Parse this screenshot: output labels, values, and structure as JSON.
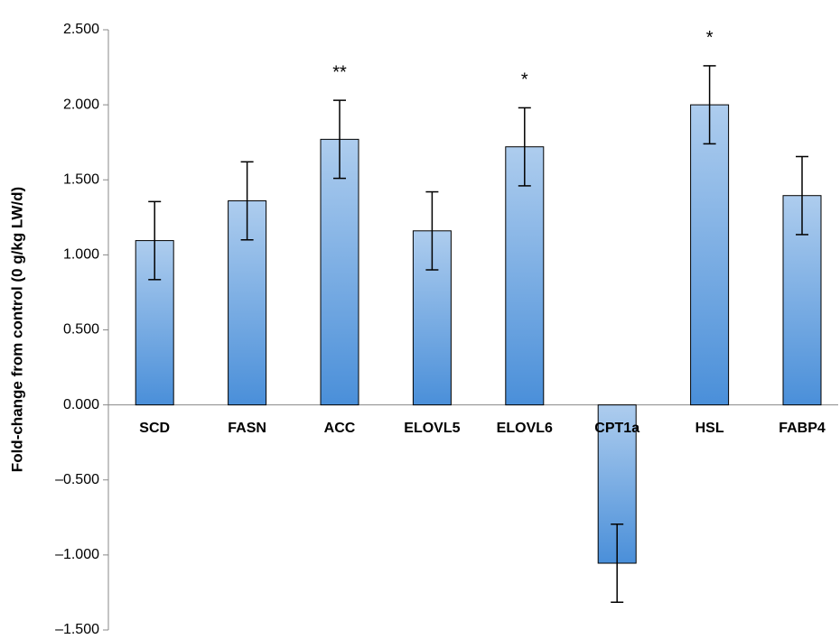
{
  "chart_data": {
    "type": "bar",
    "y_label": "Fold-change from control (0 g/kg LW/d)",
    "categories": [
      "SCD",
      "FASN",
      "ACC",
      "ELOVL5",
      "ELOVL6",
      "CPT1a",
      "HSL",
      "FABP4"
    ],
    "values": [
      1.095,
      1.36,
      1.77,
      1.16,
      1.72,
      -1.055,
      2.0,
      1.395
    ],
    "errors": [
      0.26,
      0.26,
      0.26,
      0.26,
      0.26,
      0.26,
      0.26,
      0.26
    ],
    "significance": [
      null,
      null,
      "**",
      null,
      "*",
      null,
      "*",
      null
    ],
    "color": "#4a8fd9",
    "ylim": [
      -1.5,
      2.5
    ],
    "yticks": [
      {
        "value": 2.5,
        "label": "2.500"
      },
      {
        "value": 2.0,
        "label": "2.000"
      },
      {
        "value": 1.5,
        "label": "1.500"
      },
      {
        "value": 1.0,
        "label": "1.000"
      },
      {
        "value": 0.5,
        "label": "0.500"
      },
      {
        "value": 0,
        "label": "0.000"
      },
      {
        "value": -0.5,
        "label": "–0.500"
      },
      {
        "value": -1.0,
        "label": "–1.000"
      },
      {
        "value": -1.5,
        "label": "–1.500"
      }
    ],
    "grid": false
  }
}
